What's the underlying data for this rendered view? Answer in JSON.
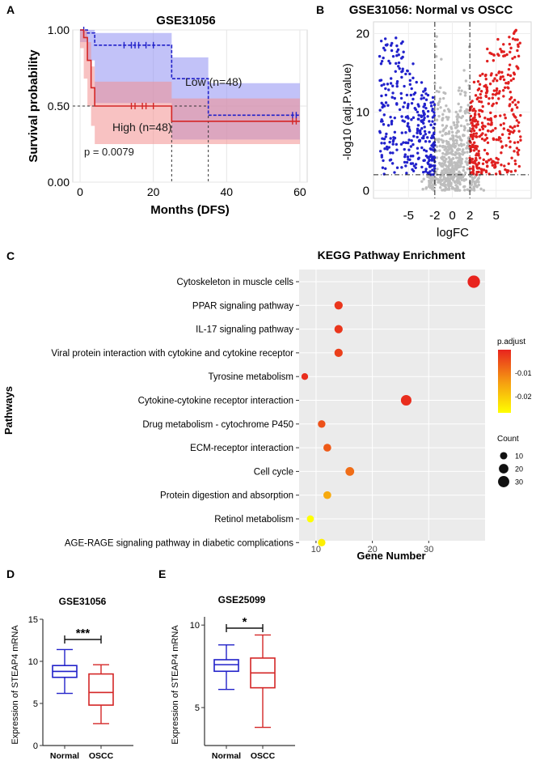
{
  "chart_data": [
    {
      "panel_label": "A",
      "type": "line",
      "title": "GSE31056",
      "xlabel": "Months (DFS)",
      "ylabel": "Survival probability",
      "xticks": [
        "0",
        "20",
        "40",
        "60"
      ],
      "yticks": [
        "0.00",
        "0.50",
        "1.00"
      ],
      "xlim": [
        -2,
        62
      ],
      "ylim": [
        0,
        1
      ],
      "pvalue_text": "p = 0.0079",
      "median_line_y": 0.5,
      "median_markers_x": [
        25,
        35
      ],
      "series": [
        {
          "name": "Low (n=48)",
          "color": "#2121c9",
          "band_color": "#8f8ff2",
          "step_x": [
            0,
            2,
            4,
            25,
            35,
            58,
            60
          ],
          "step_y": [
            1.0,
            0.98,
            0.9,
            0.68,
            0.44,
            0.44,
            0.44
          ],
          "band_upper": [
            1.0,
            1.0,
            0.98,
            0.82,
            0.65,
            0.65,
            0.65
          ],
          "band_lower": [
            1.0,
            0.92,
            0.8,
            0.52,
            0.28,
            0.28,
            0.28
          ],
          "censor_x": [
            1,
            12,
            14,
            15,
            16,
            18,
            20,
            58,
            59
          ]
        },
        {
          "name": "High (n=48)",
          "color": "#d42626",
          "band_color": "#f28f8f",
          "step_x": [
            0,
            1,
            2,
            3,
            4,
            25,
            58,
            60
          ],
          "step_y": [
            1.0,
            0.95,
            0.8,
            0.62,
            0.5,
            0.4,
            0.4,
            0.4
          ],
          "band_upper": [
            1.0,
            1.0,
            0.92,
            0.76,
            0.66,
            0.55,
            0.55,
            0.55
          ],
          "band_lower": [
            1.0,
            0.88,
            0.68,
            0.5,
            0.37,
            0.25,
            0.25,
            0.25
          ],
          "censor_x": [
            14,
            15,
            17,
            18,
            20,
            58,
            59
          ]
        }
      ]
    },
    {
      "panel_label": "B",
      "type": "scatter",
      "title": "GSE31056: Normal vs OSCC",
      "xlabel": "logFC",
      "ylabel": "-log10 (adj.P.value)",
      "xticks": [
        "-5",
        "-2",
        "0",
        "2",
        "5"
      ],
      "yticks": [
        "0",
        "10",
        "20"
      ],
      "xlim": [
        -9,
        9
      ],
      "ylim": [
        -1,
        21.5
      ],
      "cutoffs": {
        "logfc": [
          -2,
          2
        ],
        "pvalue": 2
      },
      "colors": {
        "down": "#2222cc",
        "up": "#e02020",
        "ns": "#bdbdbd"
      }
    },
    {
      "panel_label": "C",
      "type": "scatter",
      "title": "KEGG Pathway Enrichment",
      "xlabel": "Gene Number",
      "ylabel": "Pathways",
      "xticks": [
        "10",
        "20",
        "30"
      ],
      "xlim": [
        7,
        40
      ],
      "pathways": [
        "Cytoskeleton in muscle cells",
        "PPAR signaling pathway",
        "IL-17 signaling pathway",
        "Viral protein interaction with cytokine and cytokine receptor",
        "Tyrosine metabolism",
        "Cytokine-cytokine receptor interaction",
        "Drug metabolism - cytochrome P450",
        "ECM-receptor interaction",
        "Cell cycle",
        "Protein digestion and absorption",
        "Retinol metabolism",
        "AGE-RAGE signaling pathway in diabetic complications"
      ],
      "gene_numbers": [
        38,
        14,
        14,
        14,
        8,
        26,
        11,
        12,
        16,
        12,
        9,
        11
      ],
      "p_adjust": [
        -0.002,
        -0.004,
        -0.004,
        -0.005,
        -0.003,
        -0.003,
        -0.007,
        -0.008,
        -0.01,
        -0.017,
        -0.028,
        -0.026
      ],
      "color_legend": {
        "title": "p.adjust",
        "labels": [
          "-0.01",
          "-0.02"
        ],
        "high_color": "#e8241e",
        "mid_color": "#f59a12",
        "low_color": "#ffff00"
      },
      "size_legend": {
        "title": "Count",
        "labels": [
          "10",
          "20",
          "30"
        ],
        "values": [
          10,
          20,
          30
        ]
      }
    },
    {
      "panel_label": "D",
      "type": "box",
      "title": "GSE31056",
      "ylabel": "Expression of STEAP4 mRNA",
      "yticks": [
        "0",
        "5",
        "10",
        "15"
      ],
      "ylim": [
        0,
        15
      ],
      "significance": "***",
      "groups": [
        {
          "name": "Normal",
          "color": "#2121c9",
          "min": 6.2,
          "q1": 8.1,
          "median": 8.8,
          "q3": 9.5,
          "max": 11.4
        },
        {
          "name": "OSCC",
          "color": "#d42626",
          "min": 2.6,
          "q1": 4.8,
          "median": 6.3,
          "q3": 8.5,
          "max": 9.6
        }
      ]
    },
    {
      "panel_label": "E",
      "type": "box",
      "title": "GSE25099",
      "ylabel": "Expression of STEAP4 mRNA",
      "yticks": [
        "5",
        "10"
      ],
      "ylim": [
        2.7,
        10.5
      ],
      "significance": "*",
      "groups": [
        {
          "name": "Normal",
          "color": "#2121c9",
          "min": 6.1,
          "q1": 7.2,
          "median": 7.6,
          "q3": 7.9,
          "max": 8.8
        },
        {
          "name": "OSCC",
          "color": "#d42626",
          "min": 3.8,
          "q1": 6.2,
          "median": 7.1,
          "q3": 8.0,
          "max": 9.4
        }
      ]
    }
  ],
  "kaplan_meier": {
    "legend_low": "Low (n=48)",
    "legend_high": "High (n=48)"
  }
}
